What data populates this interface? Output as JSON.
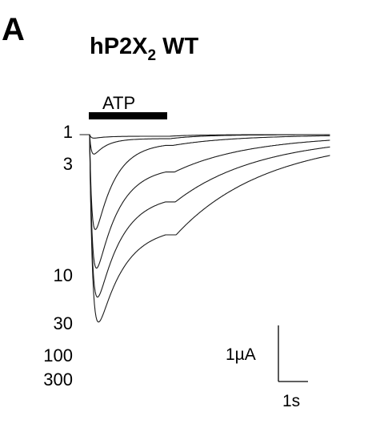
{
  "panel_letter": "A",
  "title": {
    "prefix": "hP2X",
    "subscript": "2",
    "suffix": " WT"
  },
  "chart_data": {
    "type": "line",
    "application_bar_label": "ATP",
    "series": [
      {
        "name": "1",
        "label": "1",
        "peak_uA": 0.06,
        "residual_uA": 0.02
      },
      {
        "name": "3",
        "label": "3",
        "peak_uA": 0.36,
        "residual_uA": 0.05
      },
      {
        "name": "10",
        "label": "10",
        "peak_uA": 1.75,
        "residual_uA": 0.1
      },
      {
        "name": "30",
        "label": "30",
        "peak_uA": 2.35,
        "residual_uA": 0.4
      },
      {
        "name": "100",
        "label": "100",
        "peak_uA": 2.75,
        "residual_uA": 0.75
      },
      {
        "name": "300",
        "label": "300",
        "peak_uA": 3.05,
        "residual_uA": 1.15
      }
    ],
    "scale_bar": {
      "current_label": "1µA",
      "time_label": "1s"
    }
  }
}
